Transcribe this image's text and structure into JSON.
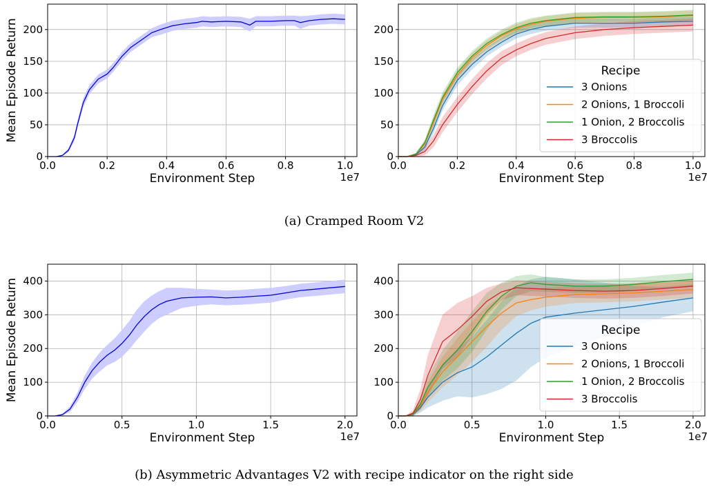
{
  "captions": {
    "a": "(a) Cramped Room V2",
    "b": "(b) Asymmetric Advantages V2 with recipe indicator on the right side"
  },
  "chart_data": [
    {
      "id": "a-left",
      "type": "line",
      "xlabel": "Environment Step",
      "ylabel": "Mean Episode Return",
      "x_multiplier": "1e7",
      "xlim": [
        0,
        1.04
      ],
      "ylim": [
        0,
        240
      ],
      "xticks": [
        0,
        0.2,
        0.4,
        0.6,
        0.8,
        1.0
      ],
      "xtick_labels": [
        "0.0",
        "0.2",
        "0.4",
        "0.6",
        "0.8",
        "1.0"
      ],
      "yticks": [
        0,
        50,
        100,
        150,
        200
      ],
      "ytick_labels": [
        "0",
        "50",
        "100",
        "150",
        "200"
      ],
      "grid": true,
      "series": [
        {
          "color": "#0000dd",
          "band_color": "#c8c8ff",
          "points": [
            [
              0,
              0
            ],
            [
              0.03,
              0
            ],
            [
              0.05,
              2
            ],
            [
              0.07,
              10
            ],
            [
              0.09,
              30
            ],
            [
              0.1,
              50
            ],
            [
              0.12,
              85
            ],
            [
              0.14,
              105
            ],
            [
              0.17,
              122
            ],
            [
              0.2,
              130
            ],
            [
              0.22,
              140
            ],
            [
              0.25,
              158
            ],
            [
              0.28,
              172
            ],
            [
              0.32,
              185
            ],
            [
              0.35,
              195
            ],
            [
              0.38,
              200
            ],
            [
              0.42,
              206
            ],
            [
              0.46,
              209
            ],
            [
              0.5,
              211
            ],
            [
              0.52,
              213
            ],
            [
              0.55,
              212
            ],
            [
              0.6,
              213
            ],
            [
              0.65,
              212
            ],
            [
              0.68,
              207
            ],
            [
              0.7,
              213
            ],
            [
              0.75,
              213
            ],
            [
              0.8,
              214
            ],
            [
              0.83,
              214
            ],
            [
              0.85,
              211
            ],
            [
              0.88,
              214
            ],
            [
              0.92,
              216
            ],
            [
              0.96,
              217
            ],
            [
              1.0,
              216
            ]
          ],
          "band": [
            0,
            0,
            1,
            3,
            5,
            6,
            7,
            7,
            7,
            7,
            7,
            7,
            7,
            7,
            7,
            8,
            8,
            8,
            8,
            8,
            8,
            8,
            8,
            10,
            8,
            8,
            8,
            8,
            10,
            8,
            8,
            8,
            8
          ]
        }
      ]
    },
    {
      "id": "a-right",
      "type": "line",
      "xlabel": "Environment Step",
      "x_multiplier": "1e7",
      "xlim": [
        0,
        1.04
      ],
      "ylim": [
        0,
        240
      ],
      "xticks": [
        0,
        0.2,
        0.4,
        0.6,
        0.8,
        1.0
      ],
      "xtick_labels": [
        "0.0",
        "0.2",
        "0.4",
        "0.6",
        "0.8",
        "1.0"
      ],
      "yticks": [
        0,
        50,
        100,
        150,
        200
      ],
      "ytick_labels": [
        "0",
        "50",
        "100",
        "150",
        "200"
      ],
      "grid": true,
      "legend": {
        "title": "Recipe",
        "position": "lower-right",
        "entries": [
          "3 Onions",
          "2 Onions, 1 Broccoli",
          "1 Onion, 2 Broccolis",
          "3 Broccolis"
        ]
      },
      "series": [
        {
          "name": "3 Onions",
          "color": "#1f77b4",
          "x": [
            0,
            0.03,
            0.06,
            0.09,
            0.12,
            0.15,
            0.2,
            0.25,
            0.3,
            0.35,
            0.4,
            0.45,
            0.5,
            0.6,
            0.7,
            0.8,
            0.9,
            1.0
          ],
          "y": [
            0,
            0,
            3,
            15,
            45,
            80,
            120,
            145,
            165,
            180,
            193,
            200,
            205,
            210,
            210,
            210,
            212,
            213
          ],
          "band": [
            0,
            0,
            2,
            5,
            8,
            8,
            8,
            8,
            7,
            7,
            7,
            7,
            7,
            7,
            7,
            7,
            7,
            7
          ]
        },
        {
          "name": "2 Onions, 1 Broccoli",
          "color": "#ff7f0e",
          "x": [
            0,
            0.03,
            0.06,
            0.09,
            0.12,
            0.15,
            0.2,
            0.25,
            0.3,
            0.35,
            0.4,
            0.45,
            0.5,
            0.6,
            0.7,
            0.8,
            0.9,
            1.0
          ],
          "y": [
            0,
            0,
            4,
            20,
            55,
            90,
            128,
            155,
            175,
            190,
            201,
            208,
            213,
            218,
            219,
            219,
            220,
            222
          ],
          "band": [
            0,
            0,
            2,
            5,
            8,
            8,
            8,
            8,
            8,
            8,
            8,
            8,
            8,
            8,
            8,
            8,
            8,
            8
          ]
        },
        {
          "name": "1 Onion, 2 Broccolis",
          "color": "#2ca02c",
          "x": [
            0,
            0.03,
            0.06,
            0.09,
            0.12,
            0.15,
            0.2,
            0.25,
            0.3,
            0.35,
            0.4,
            0.45,
            0.5,
            0.6,
            0.7,
            0.8,
            0.9,
            1.0
          ],
          "y": [
            0,
            0,
            4,
            22,
            58,
            93,
            132,
            158,
            178,
            192,
            203,
            210,
            214,
            219,
            220,
            220,
            221,
            223
          ],
          "band": [
            0,
            0,
            2,
            5,
            8,
            8,
            8,
            8,
            8,
            8,
            8,
            8,
            8,
            8,
            8,
            8,
            8,
            8
          ]
        },
        {
          "name": "3 Broccolis",
          "color": "#d62728",
          "x": [
            0,
            0.03,
            0.06,
            0.09,
            0.12,
            0.15,
            0.2,
            0.25,
            0.3,
            0.35,
            0.4,
            0.45,
            0.5,
            0.6,
            0.7,
            0.8,
            0.9,
            1.0
          ],
          "y": [
            0,
            0,
            2,
            8,
            25,
            50,
            82,
            110,
            135,
            155,
            168,
            178,
            186,
            195,
            200,
            203,
            205,
            207
          ],
          "band": [
            0,
            0,
            2,
            6,
            10,
            12,
            12,
            12,
            12,
            11,
            10,
            10,
            10,
            10,
            10,
            10,
            10,
            10
          ]
        }
      ]
    },
    {
      "id": "b-left",
      "type": "line",
      "xlabel": "Environment Step",
      "ylabel": "Mean Episode Return",
      "x_multiplier": "1e7",
      "xlim": [
        0,
        2.08
      ],
      "ylim": [
        0,
        450
      ],
      "xticks": [
        0,
        0.5,
        1.0,
        1.5,
        2.0
      ],
      "xtick_labels": [
        "0.0",
        "0.5",
        "1.0",
        "1.5",
        "2.0"
      ],
      "yticks": [
        0,
        100,
        200,
        300,
        400
      ],
      "ytick_labels": [
        "0",
        "100",
        "200",
        "300",
        "400"
      ],
      "grid": true,
      "series": [
        {
          "color": "#0000dd",
          "band_color": "#c8c8ff",
          "points": [
            [
              0,
              0
            ],
            [
              0.05,
              0
            ],
            [
              0.1,
              4
            ],
            [
              0.15,
              20
            ],
            [
              0.2,
              55
            ],
            [
              0.25,
              100
            ],
            [
              0.3,
              135
            ],
            [
              0.35,
              160
            ],
            [
              0.4,
              180
            ],
            [
              0.45,
              195
            ],
            [
              0.5,
              215
            ],
            [
              0.55,
              240
            ],
            [
              0.6,
              270
            ],
            [
              0.65,
              295
            ],
            [
              0.7,
              315
            ],
            [
              0.75,
              330
            ],
            [
              0.8,
              340
            ],
            [
              0.85,
              345
            ],
            [
              0.9,
              350
            ],
            [
              1.0,
              352
            ],
            [
              1.1,
              353
            ],
            [
              1.2,
              350
            ],
            [
              1.3,
              352
            ],
            [
              1.4,
              355
            ],
            [
              1.5,
              358
            ],
            [
              1.6,
              365
            ],
            [
              1.7,
              372
            ],
            [
              1.8,
              376
            ],
            [
              1.9,
              380
            ],
            [
              2.0,
              384
            ]
          ],
          "band": [
            0,
            0,
            3,
            8,
            14,
            20,
            24,
            28,
            30,
            35,
            40,
            42,
            45,
            45,
            42,
            40,
            40,
            35,
            30,
            25,
            22,
            22,
            22,
            22,
            22,
            20,
            20,
            20,
            20,
            20
          ]
        }
      ]
    },
    {
      "id": "b-right",
      "type": "line",
      "xlabel": "Environment Step",
      "x_multiplier": "1e7",
      "xlim": [
        0,
        2.08
      ],
      "ylim": [
        0,
        450
      ],
      "xticks": [
        0,
        0.5,
        1.0,
        1.5,
        2.0
      ],
      "xtick_labels": [
        "0.0",
        "0.5",
        "1.0",
        "1.5",
        "2.0"
      ],
      "yticks": [
        0,
        100,
        200,
        300,
        400
      ],
      "ytick_labels": [
        "0",
        "100",
        "200",
        "300",
        "400"
      ],
      "grid": true,
      "legend": {
        "title": "Recipe",
        "position": "lower-right",
        "entries": [
          "3 Onions",
          "2 Onions, 1 Broccoli",
          "1 Onion, 2 Broccolis",
          "3 Broccolis"
        ]
      },
      "series": [
        {
          "name": "3 Onions",
          "color": "#1f77b4",
          "x": [
            0,
            0.05,
            0.1,
            0.15,
            0.2,
            0.3,
            0.4,
            0.5,
            0.6,
            0.7,
            0.8,
            0.9,
            1.0,
            1.2,
            1.4,
            1.6,
            1.8,
            2.0
          ],
          "y": [
            0,
            0,
            5,
            25,
            55,
            100,
            128,
            145,
            175,
            210,
            245,
            275,
            293,
            305,
            315,
            325,
            338,
            350
          ],
          "band": [
            0,
            0,
            5,
            15,
            30,
            55,
            70,
            90,
            110,
            130,
            140,
            130,
            120,
            100,
            80,
            60,
            45,
            40
          ]
        },
        {
          "name": "2 Onions, 1 Broccoli",
          "color": "#ff7f0e",
          "x": [
            0,
            0.05,
            0.1,
            0.15,
            0.2,
            0.3,
            0.4,
            0.5,
            0.6,
            0.7,
            0.8,
            0.9,
            1.0,
            1.2,
            1.4,
            1.6,
            1.8,
            2.0
          ],
          "y": [
            0,
            0,
            6,
            30,
            70,
            130,
            175,
            220,
            265,
            305,
            335,
            345,
            352,
            360,
            362,
            365,
            370,
            375
          ],
          "band": [
            0,
            0,
            5,
            15,
            30,
            45,
            55,
            60,
            60,
            50,
            40,
            32,
            28,
            25,
            25,
            25,
            25,
            25
          ]
        },
        {
          "name": "1 Onion, 2 Broccolis",
          "color": "#2ca02c",
          "x": [
            0,
            0.05,
            0.1,
            0.15,
            0.2,
            0.3,
            0.4,
            0.5,
            0.6,
            0.7,
            0.8,
            0.9,
            1.0,
            1.2,
            1.4,
            1.6,
            1.8,
            2.0
          ],
          "y": [
            0,
            0,
            6,
            35,
            85,
            150,
            195,
            250,
            310,
            355,
            385,
            395,
            390,
            385,
            385,
            390,
            398,
            405
          ],
          "band": [
            0,
            0,
            5,
            15,
            30,
            45,
            55,
            60,
            55,
            40,
            30,
            25,
            22,
            20,
            20,
            20,
            20,
            20
          ]
        },
        {
          "name": "3 Broccolis",
          "color": "#d62728",
          "x": [
            0,
            0.05,
            0.1,
            0.15,
            0.2,
            0.3,
            0.4,
            0.5,
            0.6,
            0.7,
            0.8,
            0.9,
            1.0,
            1.2,
            1.4,
            1.6,
            1.8,
            2.0
          ],
          "y": [
            0,
            0,
            8,
            50,
            120,
            220,
            255,
            295,
            340,
            368,
            380,
            378,
            376,
            372,
            370,
            372,
            378,
            385
          ],
          "band": [
            0,
            0,
            10,
            30,
            60,
            80,
            80,
            60,
            40,
            25,
            22,
            22,
            22,
            22,
            22,
            22,
            22,
            22
          ]
        }
      ]
    }
  ]
}
